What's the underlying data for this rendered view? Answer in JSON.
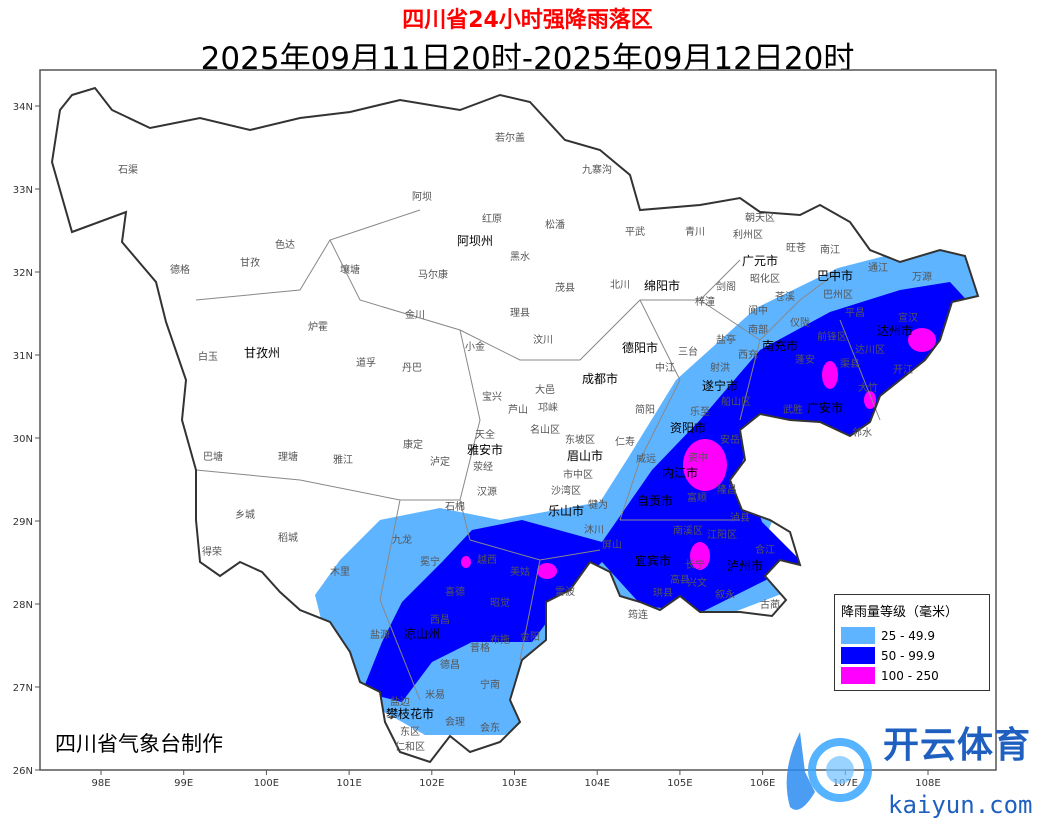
{
  "header": {
    "title": "四川省24小时强降雨落区",
    "subtitle": "2025年09月11日20时-2025年09月12日20时"
  },
  "axes": {
    "x_ticks": [
      "98E",
      "99E",
      "100E",
      "101E",
      "102E",
      "103E",
      "104E",
      "105E",
      "106E",
      "107E",
      "108E"
    ],
    "y_ticks": [
      "26N",
      "27N",
      "28N",
      "29N",
      "30N",
      "31N",
      "32N",
      "33N",
      "34N"
    ]
  },
  "legend": {
    "title": "降雨量等级（毫米）",
    "items": [
      {
        "label": "25 - 49.9",
        "color": "#5fb4ff"
      },
      {
        "label": "50 - 99.9",
        "color": "#0000ff"
      },
      {
        "label": "100 - 250",
        "color": "#ff00ff"
      }
    ]
  },
  "prefectures": [
    "阿坝州",
    "甘孜州",
    "成都市",
    "绵阳市",
    "广元市",
    "巴中市",
    "南充市",
    "达州市",
    "遂宁市",
    "资阳市",
    "广安市",
    "内江市",
    "自贡市",
    "宜宾市",
    "泸州市",
    "乐山市",
    "眉山市",
    "雅安市",
    "凉山州",
    "攀枝花市",
    "德阳市"
  ],
  "counties": [
    "石渠",
    "若尔盖",
    "九寨沟",
    "阿坝",
    "红原",
    "松潘",
    "德格",
    "甘孜",
    "色达",
    "壤塘",
    "马尔康",
    "黑水",
    "茂县",
    "平武",
    "青川",
    "朝天区",
    "利州区",
    "旺苍",
    "南江",
    "通江",
    "万源",
    "金川",
    "理县",
    "北川",
    "剑阁",
    "苍溪",
    "白玉",
    "炉霍",
    "道孚",
    "丹巴",
    "小金",
    "汶川",
    "巴塘",
    "理塘",
    "雅江",
    "康定",
    "泸定",
    "天全",
    "宝兴",
    "芦山",
    "乡城",
    "稻城",
    "得荣",
    "九龙",
    "木里",
    "冕宁",
    "越西",
    "喜德",
    "昭觉",
    "美姑",
    "雷波",
    "西昌",
    "盐源",
    "普格",
    "布拖",
    "金阳",
    "德昌",
    "宁南",
    "米易",
    "盐边",
    "会理",
    "会东",
    "仁和区",
    "东区",
    "南部",
    "阆中",
    "仪陇",
    "平昌",
    "宣汉",
    "达川区",
    "开江",
    "蓬安",
    "渠县",
    "大竹",
    "邻水",
    "武胜",
    "西充",
    "射洪",
    "盐亭",
    "三台",
    "梓潼",
    "中江",
    "简阳",
    "仁寿",
    "乐至",
    "安岳",
    "资中",
    "隆昌",
    "富顺",
    "泸县",
    "合江",
    "古蔺",
    "叙永",
    "兴文",
    "筠连",
    "长宁",
    "南溪区",
    "江阳区",
    "犍为",
    "沐川",
    "沙湾区",
    "市中区",
    "东坡区",
    "大邑",
    "邛崃",
    "名山区",
    "汉源",
    "石棉",
    "荥经",
    "巴州区",
    "昭化区",
    "前锋区",
    "船山区",
    "威远",
    "高县",
    "珙县",
    "屏山"
  ],
  "credit": "四川省气象台制作",
  "watermark": {
    "cn": "开云体育",
    "en": "kaiyun.com"
  }
}
